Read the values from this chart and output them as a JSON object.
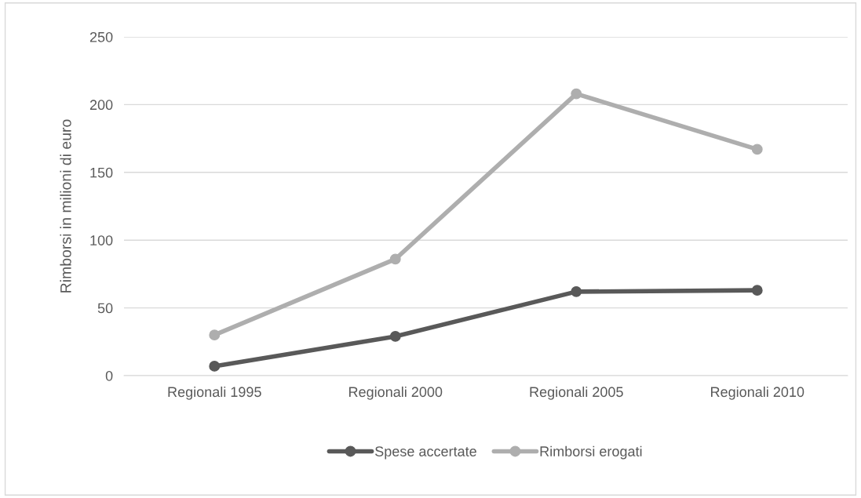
{
  "chart_data": {
    "type": "line",
    "ylabel": "Rimborsi in milioni di euro",
    "categories": [
      "Regionali 1995",
      "Regionali 2000",
      "Regionali 2005",
      "Regionali 2010"
    ],
    "series": [
      {
        "name": "Spese accertate",
        "color": "#595959",
        "values": [
          7,
          29,
          62,
          63
        ]
      },
      {
        "name": "Rimborsi erogati",
        "color": "#aeaeae",
        "values": [
          30,
          86,
          208,
          167
        ]
      }
    ],
    "ylim": [
      0,
      250
    ],
    "yticks": [
      0,
      50,
      100,
      150,
      200,
      250
    ],
    "grid": "y",
    "legend": "bottom",
    "marker": "circle",
    "line_style": "solid"
  }
}
